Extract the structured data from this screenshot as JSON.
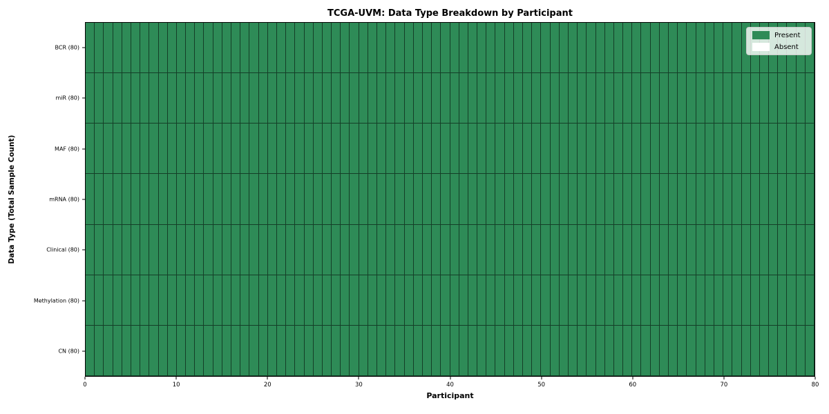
{
  "chart_data": {
    "type": "heatmap",
    "title": "TCGA-UVM: Data Type Breakdown by Participant",
    "xlabel": "Participant",
    "ylabel": "Data Type (Total Sample Count)",
    "n_participants": 80,
    "x_ticks": [
      0,
      10,
      20,
      30,
      40,
      50,
      60,
      70,
      80
    ],
    "xlim": [
      0,
      80
    ],
    "grid": "cell-borders",
    "rows": [
      {
        "label": "BCR (80)",
        "data_type": "BCR",
        "total_samples": 80,
        "present_count": 80,
        "absent_count": 0
      },
      {
        "label": "miR (80)",
        "data_type": "miR",
        "total_samples": 80,
        "present_count": 80,
        "absent_count": 0
      },
      {
        "label": "MAF (80)",
        "data_type": "MAF",
        "total_samples": 80,
        "present_count": 80,
        "absent_count": 0
      },
      {
        "label": "mRNA (80)",
        "data_type": "mRNA",
        "total_samples": 80,
        "present_count": 80,
        "absent_count": 0
      },
      {
        "label": "Clinical (80)",
        "data_type": "Clinical",
        "total_samples": 80,
        "present_count": 80,
        "absent_count": 0
      },
      {
        "label": "Methylation (80)",
        "data_type": "Methylation",
        "total_samples": 80,
        "present_count": 80,
        "absent_count": 0
      },
      {
        "label": "CN (80)",
        "data_type": "CN",
        "total_samples": 80,
        "present_count": 80,
        "absent_count": 0
      }
    ],
    "legend": {
      "position": "upper right",
      "entries": [
        {
          "label": "Present",
          "color": "#2e8b57"
        },
        {
          "label": "Absent",
          "color": "#ffffff"
        }
      ]
    },
    "colors": {
      "present": "#2e8b57",
      "absent": "#ffffff",
      "cell_border": "rgba(0,0,0,0.55)",
      "axis": "#000000",
      "background": "#ffffff"
    }
  }
}
